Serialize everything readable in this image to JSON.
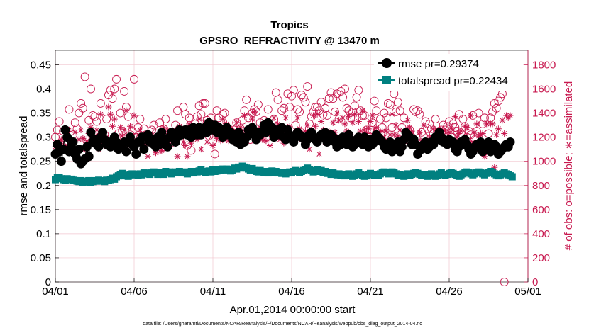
{
  "chart_data": {
    "type": "line",
    "title": "Tropics",
    "subtitle": "GPSRO_REFRACTIVITY @ 13470 m",
    "xlabel": "Apr.01,2014 00:00:00 start",
    "ylabel": "rmse and totalspread",
    "y2label": "# of obs: o=possible; ∗=assimilated",
    "footer": "data file: /Users/gharamti/Documents/NCAR/Reanalysis/~/Documents/NCAR/Reanalysis/webpub/obs_diag_output_2014-04.nc",
    "xlim": [
      0,
      30
    ],
    "ylim": [
      0,
      0.48
    ],
    "y2lim": [
      0,
      1920
    ],
    "x_ticks": [
      0,
      5,
      10,
      15,
      20,
      25,
      30
    ],
    "x_tick_labels": [
      "04/01",
      "04/06",
      "04/11",
      "04/16",
      "04/21",
      "04/26",
      "05/01"
    ],
    "y_ticks": [
      0,
      0.05,
      0.1,
      0.15,
      0.2,
      0.25,
      0.3,
      0.35,
      0.4,
      0.45
    ],
    "y_tick_labels": [
      "0",
      "0.05",
      "0.1",
      "0.15",
      "0.2",
      "0.25",
      "0.3",
      "0.35",
      "0.4",
      "0.45"
    ],
    "y2_ticks": [
      0,
      200,
      400,
      600,
      800,
      1000,
      1200,
      1400,
      1600,
      1800
    ],
    "y2_tick_labels": [
      "0",
      "200",
      "400",
      "600",
      "800",
      "1000",
      "1200",
      "1400",
      "1600",
      "1800"
    ],
    "grid": true,
    "legend_position": "top-right",
    "colors": {
      "rmse": "#000000",
      "totalspread": "#008080",
      "obs": "#c8194f",
      "grid": "#f2c6cf"
    },
    "series": [
      {
        "name": "rmse",
        "legend": "rmse pr=0.29374",
        "axis": "left",
        "values": [
          0.265,
          0.285,
          0.27,
          0.25,
          0.275,
          0.315,
          0.3,
          0.27,
          0.28,
          0.29,
          0.265,
          0.255,
          0.275,
          0.245,
          0.25,
          0.255,
          0.28,
          0.26,
          0.31,
          0.29,
          0.295,
          0.285,
          0.28,
          0.3,
          0.31,
          0.295,
          0.285,
          0.29,
          0.28,
          0.285,
          0.3,
          0.29,
          0.275,
          0.285,
          0.28,
          0.29,
          0.27,
          0.29,
          0.3,
          0.285,
          0.28,
          0.265,
          0.29,
          0.29,
          0.3,
          0.275,
          0.3,
          0.305,
          0.29,
          0.295,
          0.285,
          0.28,
          0.3,
          0.285,
          0.31,
          0.29,
          0.295,
          0.28,
          0.3,
          0.31,
          0.305,
          0.29,
          0.3,
          0.315,
          0.305,
          0.31,
          0.315,
          0.305,
          0.315,
          0.3,
          0.32,
          0.315,
          0.305,
          0.32,
          0.305,
          0.31,
          0.32,
          0.31,
          0.33,
          0.315,
          0.32,
          0.325,
          0.31,
          0.32,
          0.315,
          0.3,
          0.31,
          0.32,
          0.305,
          0.31,
          0.295,
          0.3,
          0.29,
          0.31,
          0.285,
          0.3,
          0.29,
          0.3,
          0.315,
          0.31,
          0.32,
          0.305,
          0.295,
          0.31,
          0.305,
          0.31,
          0.325,
          0.31,
          0.33,
          0.315,
          0.32,
          0.3,
          0.31,
          0.315,
          0.305,
          0.32,
          0.3,
          0.295,
          0.315,
          0.305,
          0.3,
          0.29,
          0.3,
          0.31,
          0.305,
          0.3,
          0.3,
          0.285,
          0.295,
          0.305,
          0.31,
          0.3,
          0.295,
          0.29,
          0.3,
          0.305,
          0.3,
          0.31,
          0.29,
          0.3,
          0.305,
          0.3,
          0.29,
          0.28,
          0.295,
          0.285,
          0.3,
          0.29,
          0.285,
          0.305,
          0.295,
          0.28,
          0.285,
          0.29,
          0.3,
          0.295,
          0.285,
          0.3,
          0.29,
          0.28,
          0.295,
          0.285,
          0.29,
          0.305,
          0.3,
          0.295,
          0.29,
          0.28,
          0.275,
          0.285,
          0.29,
          0.27,
          0.285,
          0.275,
          0.29,
          0.27,
          0.28,
          0.295,
          0.31,
          0.305,
          0.3,
          0.285,
          0.295,
          0.285,
          0.265,
          0.28,
          0.275,
          0.285,
          0.29,
          0.275,
          0.28,
          0.29,
          0.285,
          0.3,
          0.295,
          0.31,
          0.3,
          0.29,
          0.29,
          0.285,
          0.295,
          0.29,
          0.29,
          0.275,
          0.27,
          0.28,
          0.29,
          0.285,
          0.295,
          0.285,
          0.275,
          0.265,
          0.27,
          0.28,
          0.285,
          0.28,
          0.29,
          0.27,
          0.285,
          0.28,
          0.29,
          0.27,
          0.275,
          0.285,
          0.28,
          0.265,
          0.27,
          0.275,
          0.28,
          0.285,
          0.28,
          0.29
        ]
      },
      {
        "name": "totalspread",
        "legend": "totalspread pr=0.22434",
        "axis": "left",
        "values": [
          0.212,
          0.217,
          0.216,
          0.214,
          0.212,
          0.21,
          0.214,
          0.212,
          0.213,
          0.211,
          0.21,
          0.209,
          0.208,
          0.21,
          0.207,
          0.209,
          0.208,
          0.21,
          0.206,
          0.208,
          0.21,
          0.209,
          0.211,
          0.209,
          0.21,
          0.208,
          0.211,
          0.21,
          0.212,
          0.215,
          0.213,
          0.218,
          0.22,
          0.222,
          0.225,
          0.22,
          0.221,
          0.219,
          0.222,
          0.224,
          0.222,
          0.223,
          0.221,
          0.224,
          0.222,
          0.226,
          0.224,
          0.225,
          0.223,
          0.226,
          0.228,
          0.226,
          0.223,
          0.227,
          0.225,
          0.223,
          0.229,
          0.226,
          0.228,
          0.224,
          0.226,
          0.228,
          0.227,
          0.229,
          0.226,
          0.228,
          0.226,
          0.224,
          0.226,
          0.229,
          0.226,
          0.229,
          0.228,
          0.23,
          0.232,
          0.229,
          0.227,
          0.229,
          0.23,
          0.228,
          0.232,
          0.229,
          0.23,
          0.233,
          0.231,
          0.234,
          0.232,
          0.234,
          0.233,
          0.23,
          0.232,
          0.236,
          0.234,
          0.238,
          0.236,
          0.24,
          0.238,
          0.236,
          0.234,
          0.232,
          0.235,
          0.231,
          0.229,
          0.228,
          0.231,
          0.229,
          0.227,
          0.229,
          0.226,
          0.228,
          0.23,
          0.227,
          0.229,
          0.226,
          0.227,
          0.225,
          0.227,
          0.224,
          0.226,
          0.228,
          0.226,
          0.229,
          0.231,
          0.229,
          0.227,
          0.229,
          0.231,
          0.233,
          0.236,
          0.233,
          0.231,
          0.228,
          0.23,
          0.232,
          0.229,
          0.231,
          0.227,
          0.229,
          0.225,
          0.227,
          0.223,
          0.226,
          0.224,
          0.222,
          0.224,
          0.221,
          0.223,
          0.22,
          0.222,
          0.224,
          0.221,
          0.219,
          0.221,
          0.224,
          0.226,
          0.223,
          0.221,
          0.219,
          0.22,
          0.223,
          0.225,
          0.223,
          0.221,
          0.223,
          0.221,
          0.224,
          0.226,
          0.228,
          0.226,
          0.224,
          0.226,
          0.228,
          0.226,
          0.224,
          0.221,
          0.223,
          0.221,
          0.219,
          0.221,
          0.224,
          0.221,
          0.223,
          0.225,
          0.227,
          0.225,
          0.223,
          0.221,
          0.223,
          0.221,
          0.219,
          0.222,
          0.224,
          0.221,
          0.219,
          0.221,
          0.224,
          0.226,
          0.223,
          0.221,
          0.223,
          0.225,
          0.227,
          0.225,
          0.223,
          0.221,
          0.219,
          0.222,
          0.224,
          0.226,
          0.228,
          0.226,
          0.224,
          0.222,
          0.224,
          0.226,
          0.228,
          0.226,
          0.224,
          0.222,
          0.225,
          0.227,
          0.229,
          0.226,
          0.224,
          0.222,
          0.22,
          0.222,
          0.224,
          0.226,
          0.224,
          0.222,
          0.22,
          0.218
        ]
      },
      {
        "name": "possible",
        "marker": "o",
        "axis": "right",
        "values": [
          1200,
          1260,
          1330,
          1140,
          1250,
          1170,
          1150,
          1430,
          1130,
          1220,
          1320,
          1270,
          1400,
          1480,
          1440,
          1700,
          1170,
          1340,
          1600,
          1380,
          1370,
          1330,
          1200,
          1480,
          1170,
          1220,
          1350,
          1550,
          1590,
          1520,
          1600,
          1680,
          1230,
          1400,
          1250,
          1580,
          1450,
          1370,
          1220,
          1250,
          1680,
          1200,
          1280,
          1350,
          1170,
          1270,
          1220,
          1200,
          1210,
          1260,
          1300,
          1230,
          1090,
          1320,
          1110,
          1270,
          1350,
          1200,
          1140,
          1180,
          1230,
          1300,
          1420,
          1270,
          1250,
          1450,
          1390,
          1130,
          1360,
          1090,
          1220,
          1310,
          1370,
          1460,
          1390,
          1480,
          1480,
          1340,
          1210,
          1360,
          1170,
          1060,
          1420,
          1360,
          1230,
          1390,
          1400,
          1200,
          1270,
          1250,
          1180,
          1260,
          1320,
          1200,
          1270,
          1340,
          1420,
          1510,
          1360,
          1180,
          1400,
          1430,
          1410,
          1470,
          1320,
          1250,
          1340,
          1200,
          1430,
          1290,
          1230,
          1350,
          1570,
          1510,
          1220,
          1420,
          1440,
          1260,
          1560,
          1450,
          1540,
          1590,
          1300,
          1430,
          1410,
          1550,
          1530,
          1490,
          1620,
          1310,
          1370,
          1410,
          1450,
          1450,
          1420,
          1490,
          1390,
          1440,
          1380,
          1520,
          1570,
          1520,
          1410,
          1560,
          1350,
          1580,
          1530,
          1600,
          1440,
          1420,
          1360,
          1410,
          1460,
          1530,
          1590,
          1420,
          1380,
          1380,
          1260,
          1210,
          1260,
          1320,
          1500,
          1420,
          1700,
          1350,
          1280,
          1400,
          1360,
          1480,
          1470,
          1280,
          1560,
          1410,
          1490,
          1420,
          1280,
          1360,
          1180,
          1250,
          1260,
          1200,
          1430,
          1410,
          1420,
          1390,
          1240,
          1210,
          1330,
          1270,
          1310,
          1270,
          1230,
          1350,
          1230,
          1250,
          1260,
          1300,
          1260,
          1290,
          1330,
          1200,
          1310,
          1280,
          1250,
          1390,
          1230,
          1350,
          1290,
          1200,
          1250,
          1220,
          1380,
          1180,
          1250,
          1400,
          1100,
          1310,
          1360,
          1110,
          1230,
          1360,
          1410,
          1480,
          1440,
          1500,
          1530,
          1560,
          0
        ]
      },
      {
        "name": "assimilated",
        "marker": "*",
        "axis": "right",
        "values": [
          1120,
          1100,
          1150,
          1180,
          1090,
          1200,
          1130,
          1260,
          1100,
          1150,
          1240,
          1110,
          1180,
          1260,
          1190,
          1100,
          1170,
          1230,
          1280,
          1200,
          1140,
          1260,
          1100,
          1390,
          1140,
          1130,
          1200,
          1450,
          1390,
          1290,
          1350,
          1170,
          1170,
          1280,
          1210,
          1260,
          1420,
          1130,
          1290,
          1200,
          1380,
          1180,
          1220,
          1260,
          1100,
          1130,
          1170,
          1040,
          1140,
          1150,
          1180,
          1070,
          1200,
          1130,
          1090,
          1280,
          1130,
          1260,
          1170,
          1250,
          1150,
          1210,
          1040,
          1290,
          1230,
          1160,
          1130,
          1040,
          1310,
          1150,
          1230,
          1200,
          1180,
          1350,
          1100,
          1290,
          1320,
          1160,
          1220,
          1250,
          1130,
          1260,
          1190,
          1250,
          1170,
          1350,
          1300,
          1310,
          1170,
          1200,
          1250,
          1160,
          1320,
          1170,
          1280,
          1210,
          1380,
          1240,
          1200,
          1210,
          1350,
          1410,
          1200,
          1260,
          1280,
          1180,
          1250,
          1170,
          1270,
          1130,
          1210,
          1360,
          1230,
          1310,
          1180,
          1240,
          1150,
          1360,
          1210,
          1290,
          1170,
          1230,
          1200,
          1360,
          1270,
          1180,
          1160,
          1250,
          1300,
          1100,
          1200,
          1380,
          1290,
          1390,
          1060,
          1330,
          1260,
          1160,
          1220,
          1250,
          1180,
          1320,
          1240,
          1400,
          1340,
          1170,
          1360,
          1310,
          1250,
          1370,
          1220,
          1320,
          1390,
          1160,
          1330,
          1250,
          1420,
          1260,
          1230,
          1270,
          1330,
          1380,
          1260,
          1280,
          1210,
          1250,
          1250,
          1200,
          1250,
          1170,
          1220,
          1390,
          1220,
          1300,
          1210,
          1260,
          1170,
          1190,
          1230,
          1340,
          1280,
          1250,
          1130,
          1180,
          1120,
          1240,
          1170,
          1300,
          1140,
          1150,
          1200,
          1120,
          1270,
          1180,
          1200,
          1250,
          1190,
          1160,
          1250,
          1130,
          1240,
          1280,
          1260,
          1370,
          1200,
          1230,
          1250,
          1130,
          1290,
          1280,
          1150,
          1380,
          1160,
          1240,
          1310,
          1210,
          1220,
          1230,
          1040,
          1310,
          1110,
          1310,
          1310,
          950,
          1220,
          1270,
          900,
          1340,
          1230,
          1380,
          1360,
          1380
        ]
      }
    ]
  }
}
